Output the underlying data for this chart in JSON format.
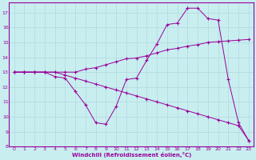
{
  "xlabel": "Windchill (Refroidissement éolien,°C)",
  "background_color": "#c8eef0",
  "grid_color": "#b0d8dc",
  "line_color": "#990099",
  "xlim": [
    -0.5,
    23.5
  ],
  "ylim": [
    8,
    17.7
  ],
  "yticks": [
    8,
    9,
    10,
    11,
    12,
    13,
    14,
    15,
    16,
    17
  ],
  "xticks": [
    0,
    1,
    2,
    3,
    4,
    5,
    6,
    7,
    8,
    9,
    10,
    11,
    12,
    13,
    14,
    15,
    16,
    17,
    18,
    19,
    20,
    21,
    22,
    23
  ],
  "line1_x": [
    0,
    1,
    2,
    3,
    4,
    5,
    6,
    7,
    8,
    9,
    10,
    11,
    12,
    13,
    14,
    15,
    16,
    17,
    18,
    19,
    20,
    21,
    22,
    23
  ],
  "line1_y": [
    13,
    13,
    13,
    13,
    12.7,
    12.6,
    11.7,
    10.8,
    9.6,
    9.5,
    10.7,
    12.5,
    12.6,
    13.8,
    14.9,
    16.2,
    16.3,
    17.3,
    17.3,
    16.6,
    16.5,
    12.5,
    9.6,
    8.4
  ],
  "line2_x": [
    0,
    1,
    2,
    3,
    4,
    5,
    6,
    7,
    8,
    9,
    10,
    11,
    12,
    13,
    14,
    15,
    16,
    17,
    18,
    19,
    20,
    21,
    22,
    23
  ],
  "line2_y": [
    13,
    13,
    13,
    13,
    13,
    13,
    13,
    13.2,
    13.3,
    13.5,
    13.7,
    13.9,
    13.95,
    14.1,
    14.3,
    14.5,
    14.6,
    14.75,
    14.85,
    15.0,
    15.05,
    15.1,
    15.15,
    15.2
  ],
  "line3_x": [
    0,
    1,
    2,
    3,
    4,
    5,
    6,
    7,
    8,
    9,
    10,
    11,
    12,
    13,
    14,
    15,
    16,
    17,
    18,
    19,
    20,
    21,
    22,
    23
  ],
  "line3_y": [
    13,
    13,
    13,
    13,
    13,
    12.8,
    12.6,
    12.4,
    12.2,
    12.0,
    11.8,
    11.6,
    11.4,
    11.2,
    11.0,
    10.8,
    10.6,
    10.4,
    10.2,
    10.0,
    9.8,
    9.6,
    9.4,
    8.4
  ]
}
